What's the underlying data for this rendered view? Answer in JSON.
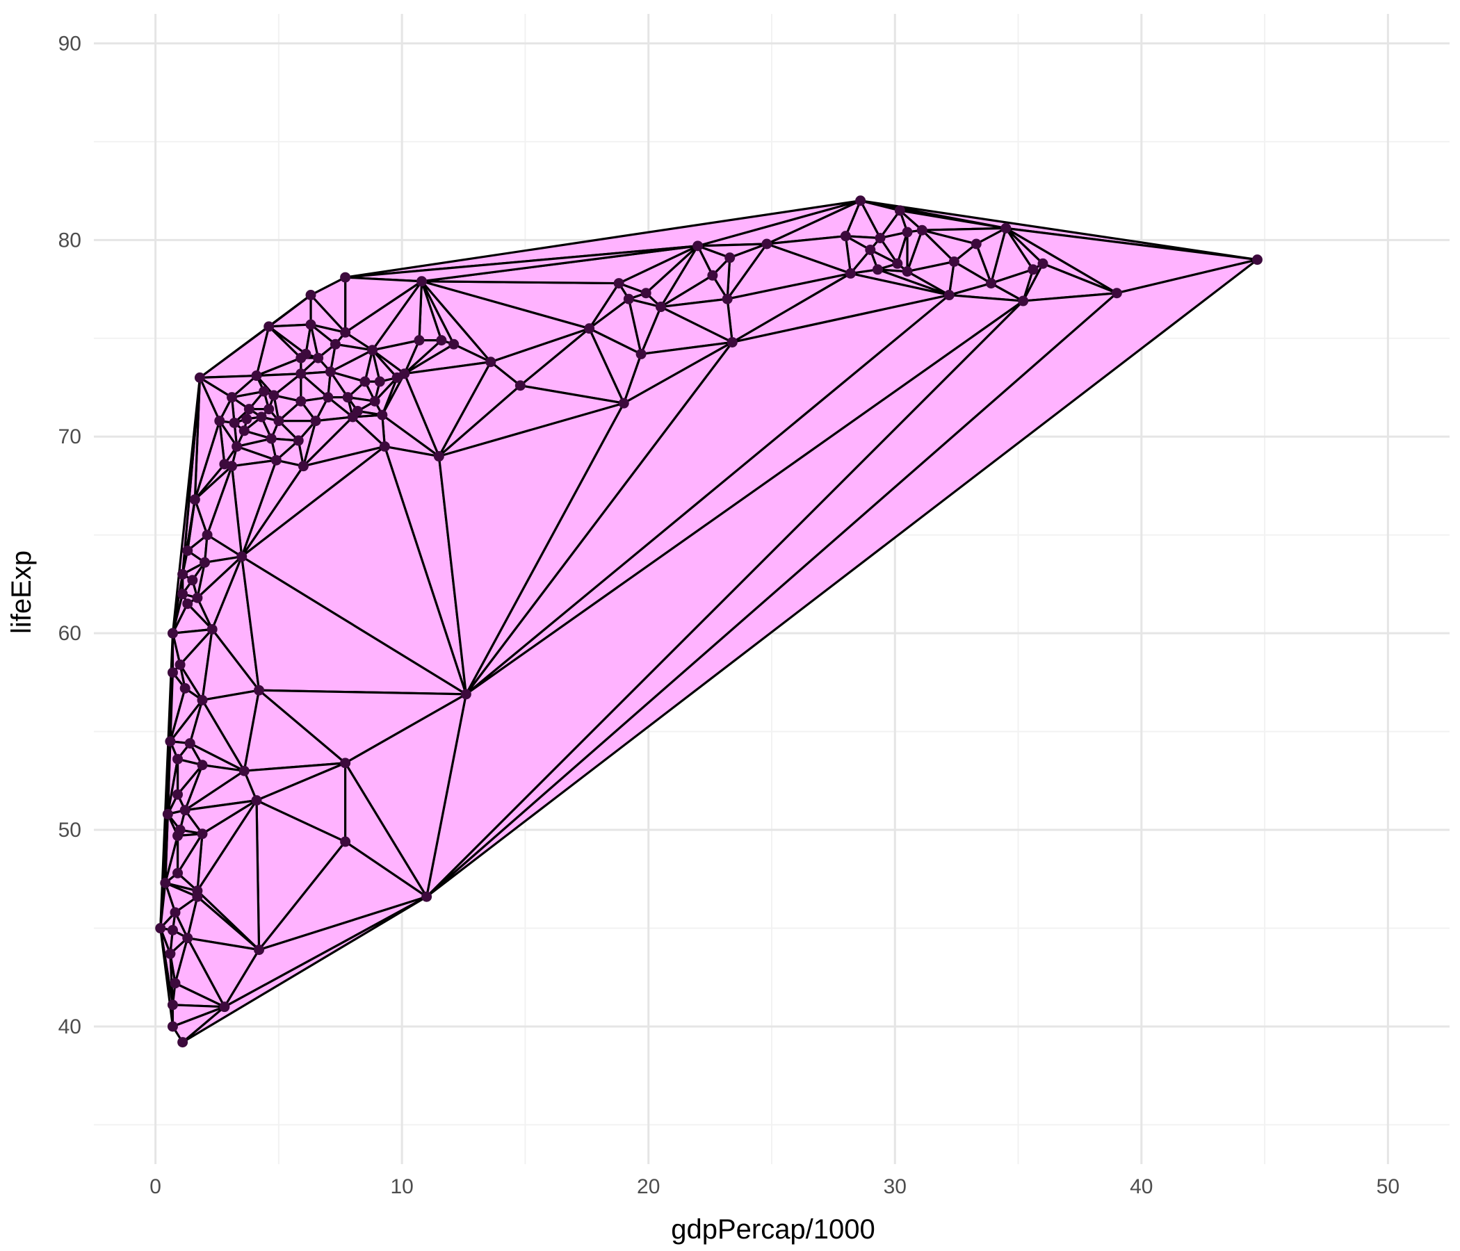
{
  "chart_data": {
    "type": "scatter",
    "overlay": "delaunay-triangulation",
    "xlabel": "gdpPercap/1000",
    "ylabel": "lifeExp",
    "xlim": [
      -2.5,
      52.5
    ],
    "ylim": [
      33,
      91.5
    ],
    "x_ticks": [
      0,
      10,
      20,
      30,
      40,
      50
    ],
    "y_ticks": [
      40,
      50,
      60,
      70,
      80,
      90
    ],
    "x_tick_labels": [
      "0",
      "10",
      "20",
      "30",
      "40",
      "50"
    ],
    "y_tick_labels": [
      "40",
      "50",
      "60",
      "70",
      "80",
      "90"
    ],
    "grid": true,
    "legend": "none",
    "colors": {
      "fill": "#ffb3ff",
      "edge": "#000000",
      "point": "#3d0a3d",
      "grid_major": "#e5e5e5",
      "grid_minor": "#f2f2f2",
      "background": "#ffffff"
    },
    "points": [
      [
        28.6,
        82.0
      ],
      [
        30.2,
        81.5
      ],
      [
        31.1,
        80.5
      ],
      [
        34.5,
        80.6
      ],
      [
        44.7,
        79.0
      ],
      [
        36.0,
        78.8
      ],
      [
        39.0,
        77.3
      ],
      [
        35.2,
        76.9
      ],
      [
        32.2,
        77.2
      ],
      [
        33.9,
        77.8
      ],
      [
        35.6,
        78.5
      ],
      [
        33.3,
        79.8
      ],
      [
        32.4,
        78.9
      ],
      [
        30.5,
        80.4
      ],
      [
        29.4,
        80.1
      ],
      [
        28.0,
        80.2
      ],
      [
        29.0,
        79.5
      ],
      [
        29.3,
        78.5
      ],
      [
        30.1,
        78.8
      ],
      [
        30.5,
        78.4
      ],
      [
        28.2,
        78.3
      ],
      [
        24.8,
        79.8
      ],
      [
        22.0,
        79.7
      ],
      [
        23.3,
        79.1
      ],
      [
        22.6,
        78.2
      ],
      [
        23.2,
        77.0
      ],
      [
        23.4,
        74.8
      ],
      [
        20.5,
        76.6
      ],
      [
        19.9,
        77.3
      ],
      [
        19.2,
        77.0
      ],
      [
        18.8,
        77.8
      ],
      [
        17.6,
        75.5
      ],
      [
        19.7,
        74.2
      ],
      [
        19.0,
        71.7
      ],
      [
        14.8,
        72.6
      ],
      [
        13.6,
        73.8
      ],
      [
        12.1,
        74.7
      ],
      [
        11.6,
        74.9
      ],
      [
        10.8,
        77.9
      ],
      [
        10.7,
        74.9
      ],
      [
        10.1,
        73.2
      ],
      [
        9.8,
        73.0
      ],
      [
        9.1,
        72.8
      ],
      [
        8.9,
        71.8
      ],
      [
        9.2,
        71.1
      ],
      [
        9.3,
        69.5
      ],
      [
        11.5,
        69.0
      ],
      [
        8.8,
        74.4
      ],
      [
        8.5,
        72.8
      ],
      [
        7.7,
        75.3
      ],
      [
        7.7,
        78.1
      ],
      [
        6.3,
        77.2
      ],
      [
        4.6,
        75.6
      ],
      [
        6.3,
        75.7
      ],
      [
        7.3,
        74.7
      ],
      [
        6.6,
        74.0
      ],
      [
        6.1,
        74.2
      ],
      [
        5.9,
        74.0
      ],
      [
        5.9,
        73.2
      ],
      [
        7.1,
        73.3
      ],
      [
        7.8,
        72.0
      ],
      [
        8.2,
        71.3
      ],
      [
        8.0,
        71.0
      ],
      [
        7.0,
        72.0
      ],
      [
        6.5,
        70.8
      ],
      [
        5.9,
        71.8
      ],
      [
        5.8,
        69.8
      ],
      [
        6.0,
        68.5
      ],
      [
        5.0,
        70.8
      ],
      [
        4.7,
        69.9
      ],
      [
        4.9,
        68.8
      ],
      [
        4.8,
        72.1
      ],
      [
        4.4,
        72.3
      ],
      [
        4.6,
        71.4
      ],
      [
        4.3,
        71.0
      ],
      [
        3.8,
        71.4
      ],
      [
        3.6,
        70.3
      ],
      [
        3.2,
        70.7
      ],
      [
        3.3,
        69.5
      ],
      [
        3.1,
        68.5
      ],
      [
        2.8,
        68.6
      ],
      [
        2.6,
        70.8
      ],
      [
        3.1,
        72.0
      ],
      [
        4.1,
        73.1
      ],
      [
        3.7,
        70.9
      ],
      [
        1.8,
        73.0
      ],
      [
        1.6,
        66.8
      ],
      [
        2.1,
        65.0
      ],
      [
        2.0,
        63.6
      ],
      [
        1.3,
        64.2
      ],
      [
        1.1,
        63.0
      ],
      [
        1.5,
        62.7
      ],
      [
        1.7,
        61.8
      ],
      [
        1.3,
        61.5
      ],
      [
        1.1,
        62.0
      ],
      [
        3.5,
        63.9
      ],
      [
        0.7,
        60.0
      ],
      [
        2.3,
        60.2
      ],
      [
        1.0,
        58.4
      ],
      [
        0.7,
        58.0
      ],
      [
        1.2,
        57.2
      ],
      [
        1.9,
        56.6
      ],
      [
        4.2,
        57.1
      ],
      [
        12.6,
        56.9
      ],
      [
        0.6,
        54.5
      ],
      [
        1.4,
        54.4
      ],
      [
        1.9,
        53.3
      ],
      [
        0.9,
        53.6
      ],
      [
        3.6,
        53.0
      ],
      [
        7.7,
        53.4
      ],
      [
        4.1,
        51.5
      ],
      [
        1.2,
        51.0
      ],
      [
        0.9,
        51.8
      ],
      [
        0.5,
        50.8
      ],
      [
        1.0,
        50.0
      ],
      [
        1.9,
        49.8
      ],
      [
        0.9,
        49.7
      ],
      [
        7.7,
        49.4
      ],
      [
        1.7,
        46.9
      ],
      [
        1.7,
        46.6
      ],
      [
        11.0,
        46.6
      ],
      [
        0.9,
        47.8
      ],
      [
        0.4,
        47.3
      ],
      [
        0.8,
        45.8
      ],
      [
        1.3,
        44.5
      ],
      [
        0.2,
        45.0
      ],
      [
        0.7,
        44.9
      ],
      [
        0.6,
        43.7
      ],
      [
        4.2,
        43.9
      ],
      [
        0.8,
        42.2
      ],
      [
        0.7,
        41.1
      ],
      [
        2.8,
        41.0
      ],
      [
        0.7,
        40.0
      ],
      [
        1.1,
        39.2
      ]
    ]
  }
}
